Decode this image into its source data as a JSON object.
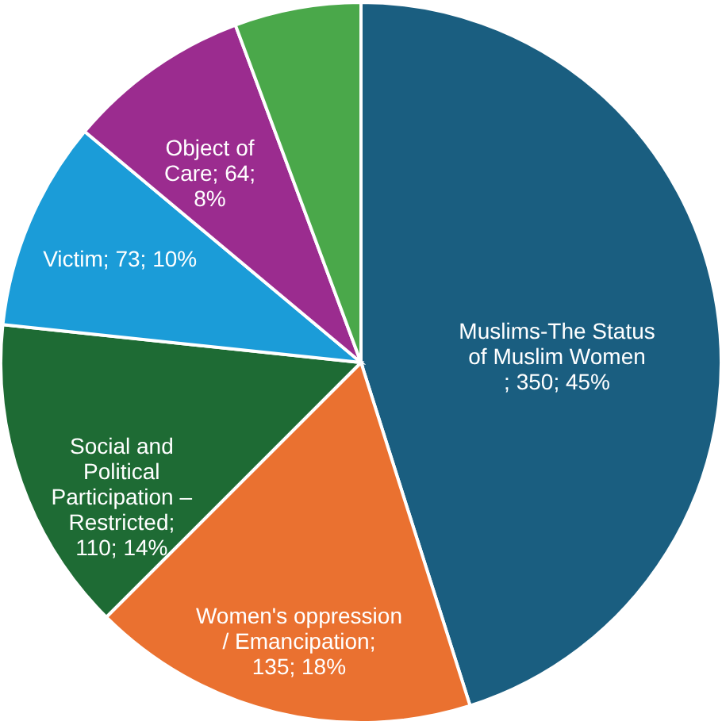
{
  "chart_data": {
    "type": "pie",
    "categories": [
      "Muslims-The Status of Muslim Women",
      "Women's oppression / Emancipation",
      "Social and Political Participation – Restricted",
      "Victim",
      "Object of Care",
      null
    ],
    "values": [
      350,
      135,
      110,
      73,
      64,
      44
    ],
    "colors": [
      "#1a5e80",
      "#ea7130",
      "#1e6b34",
      "#1b9cd8",
      "#9b2c8f",
      "#4aa84a"
    ],
    "value_labels": [
      "; 350; 45%",
      "; 135; 18%",
      "; 110; 14%",
      "; 73; 10%",
      "; 64; 8%",
      null
    ]
  }
}
